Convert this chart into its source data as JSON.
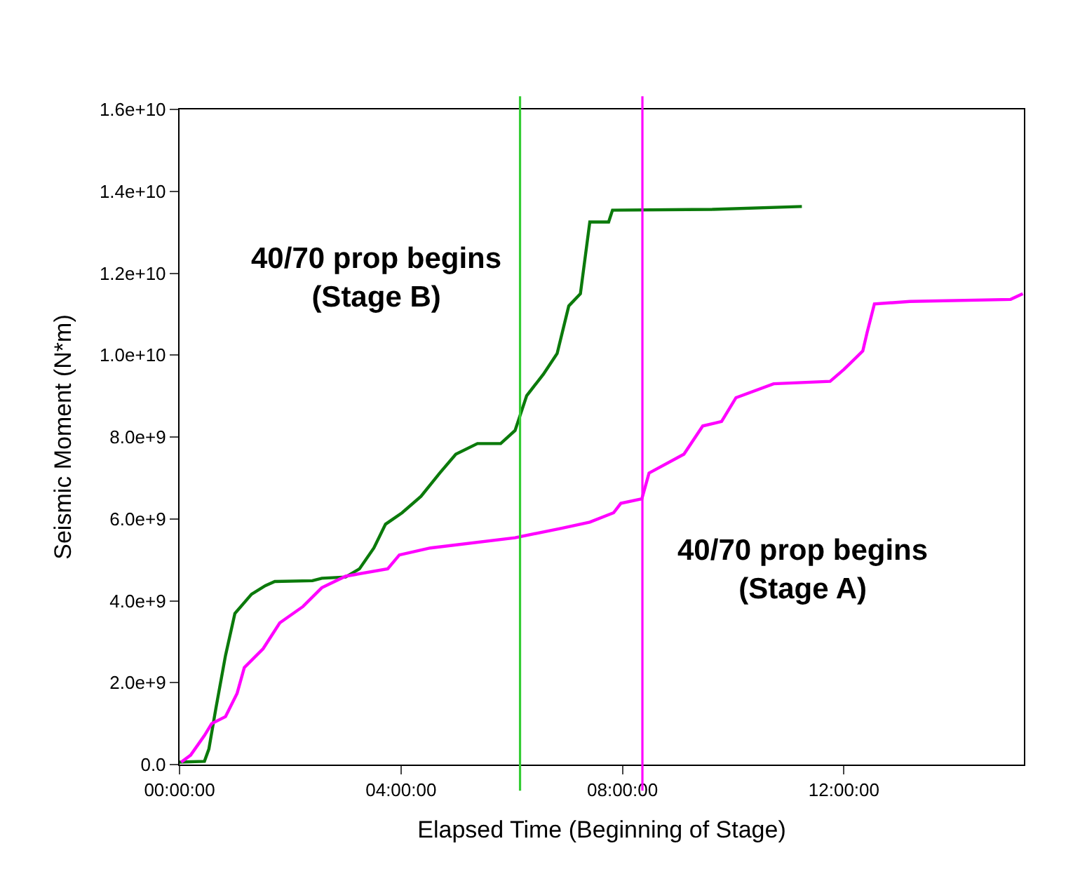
{
  "chart_data": {
    "type": "line",
    "xlabel": "Elapsed Time (Beginning of Stage)",
    "ylabel": "Seismic Moment (N*m)",
    "xlim": [
      0,
      15.25
    ],
    "ylim": [
      0,
      16000000000.0
    ],
    "xticks": [
      {
        "value": 0,
        "label": "00:00:00"
      },
      {
        "value": 4,
        "label": "04:00:00"
      },
      {
        "value": 8,
        "label": "08:00:00"
      },
      {
        "value": 12,
        "label": "12:00:00"
      }
    ],
    "yticks": [
      {
        "value": 0,
        "label": "0.0"
      },
      {
        "value": 2000000000.0,
        "label": "2.0e+9"
      },
      {
        "value": 4000000000.0,
        "label": "4.0e+9"
      },
      {
        "value": 6000000000.0,
        "label": "6.0e+9"
      },
      {
        "value": 8000000000.0,
        "label": "8.0e+9"
      },
      {
        "value": 10000000000.0,
        "label": "1.0e+10"
      },
      {
        "value": 12000000000.0,
        "label": "1.2e+10"
      },
      {
        "value": 14000000000.0,
        "label": "1.4e+10"
      },
      {
        "value": 16000000000.0,
        "label": "1.6e+10"
      }
    ],
    "marker": "none",
    "line_style": "solid",
    "series": [
      {
        "color": "#0b7a0b",
        "x": [
          0,
          0.45,
          0.53,
          0.66,
          0.83,
          1.0,
          1.3,
          1.55,
          1.72,
          2.4,
          2.57,
          3.0,
          3.25,
          3.51,
          3.72,
          4.02,
          4.36,
          4.7,
          4.99,
          5.38,
          5.8,
          6.06,
          6.27,
          6.57,
          6.82,
          7.03,
          7.24,
          7.41,
          7.75,
          7.82,
          9.62,
          11.24
        ],
        "values": [
          60000000.0,
          80000000.0,
          380000000.0,
          1400000000.0,
          2660000000.0,
          3690000000.0,
          4160000000.0,
          4370000000.0,
          4470000000.0,
          4490000000.0,
          4550000000.0,
          4580000000.0,
          4780000000.0,
          5290000000.0,
          5870000000.0,
          6150000000.0,
          6550000000.0,
          7120000000.0,
          7580000000.0,
          7840000000.0,
          7840000000.0,
          8160000000.0,
          9010000000.0,
          9530000000.0,
          10040000000.0,
          11200000000.0,
          11500000000.0,
          13250000000.0,
          13250000000.0,
          13540000000.0,
          13560000000.0,
          13630000000.0
        ]
      },
      {
        "color": "#ff00ff",
        "x": [
          0.03,
          0.2,
          0.45,
          0.58,
          0.83,
          1.04,
          1.17,
          1.51,
          1.81,
          2.23,
          2.57,
          3.0,
          3.76,
          3.97,
          4.53,
          6.06,
          6.9,
          7.41,
          7.84,
          7.97,
          8.35,
          8.48,
          9.11,
          9.45,
          9.79,
          10.05,
          10.73,
          11.75,
          12.0,
          12.34,
          12.42,
          12.55,
          13.19,
          15.01,
          15.23
        ],
        "values": [
          60000000.0,
          230000000.0,
          710000000.0,
          1000000000.0,
          1170000000.0,
          1740000000.0,
          2370000000.0,
          2830000000.0,
          3460000000.0,
          3860000000.0,
          4320000000.0,
          4600000000.0,
          4780000000.0,
          5120000000.0,
          5290000000.0,
          5540000000.0,
          5770000000.0,
          5920000000.0,
          6150000000.0,
          6380000000.0,
          6490000000.0,
          7120000000.0,
          7580000000.0,
          8270000000.0,
          8380000000.0,
          8960000000.0,
          9300000000.0,
          9360000000.0,
          9650000000.0,
          10100000000.0,
          10560000000.0,
          11250000000.0,
          11310000000.0,
          11360000000.0,
          11500000000.0
        ]
      }
    ],
    "ref_lines": [
      {
        "axis": "x",
        "value": 6.15,
        "color": "#33cc33",
        "line_style": "solid",
        "label": "40/70 prop begins\n(Stage B)"
      },
      {
        "axis": "x",
        "value": 8.36,
        "color": "#ff00ff",
        "line_style": "solid",
        "label": "40/70 prop begins\n(Stage A)"
      }
    ]
  }
}
